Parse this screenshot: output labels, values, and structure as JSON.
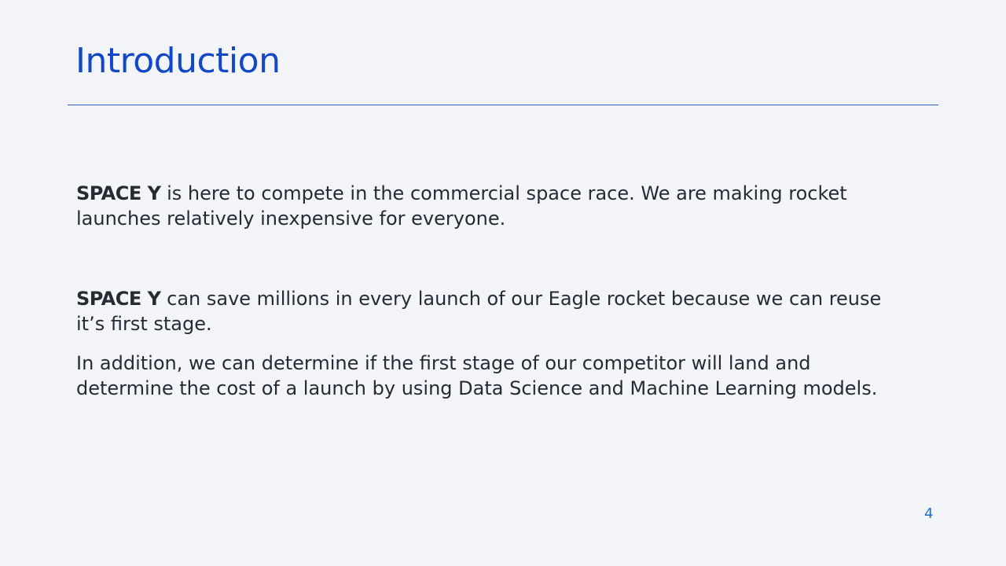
{
  "slide": {
    "title": "Introduction",
    "paragraphs": [
      {
        "brand": "SPACE Y",
        "text": " is here to compete in the commercial space race. We are making rocket launches relatively inexpensive for everyone."
      },
      {
        "brand": "SPACE Y",
        "text": " can save millions in every launch of our Eagle rocket because we can reuse it’s first stage."
      },
      {
        "text": "In addition, we can determine if the first stage of our competitor will land and determine the cost of a launch by using Data Science and Machine Learning models."
      }
    ],
    "page_number": "4"
  },
  "colors": {
    "title": "#1147c8",
    "rule": "#2d5fc2",
    "body_text": "#262b33",
    "page_number": "#1a6fd1",
    "background": "#f1f3f7"
  }
}
